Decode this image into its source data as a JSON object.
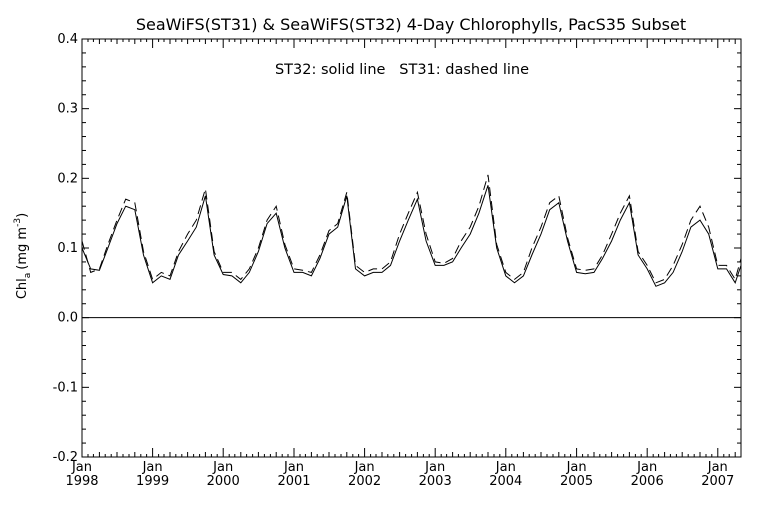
{
  "chart_data": {
    "type": "line",
    "title": "SeaWiFS(ST31) & SeaWiFS(ST32) 4-Day Chlorophylls, PacS35 Subset",
    "annotation": "ST32: solid line   ST31: dashed line",
    "ylabel_main": "Chl",
    "ylabel_sub": "a",
    "ylabel_units": "(mg m",
    "ylabel_sup": "-3",
    "ylabel_close": ")",
    "xlim": [
      "1998-01-01",
      "2007-05-01"
    ],
    "ylim": [
      -0.2,
      0.4
    ],
    "yticks": [
      {
        "value": -0.2,
        "label": "-0.2"
      },
      {
        "value": -0.1,
        "label": "-0.1"
      },
      {
        "value": 0.0,
        "label": "0.0"
      },
      {
        "value": 0.1,
        "label": "0.1"
      },
      {
        "value": 0.2,
        "label": "0.2"
      },
      {
        "value": 0.3,
        "label": "0.3"
      },
      {
        "value": 0.4,
        "label": "0.4"
      }
    ],
    "xticks": [
      {
        "value": "1998-01-01",
        "month": "Jan",
        "year": "1998"
      },
      {
        "value": "1999-01-01",
        "month": "Jan",
        "year": "1999"
      },
      {
        "value": "2000-01-01",
        "month": "Jan",
        "year": "2000"
      },
      {
        "value": "2001-01-01",
        "month": "Jan",
        "year": "2001"
      },
      {
        "value": "2002-01-01",
        "month": "Jan",
        "year": "2002"
      },
      {
        "value": "2003-01-01",
        "month": "Jan",
        "year": "2003"
      },
      {
        "value": "2004-01-01",
        "month": "Jan",
        "year": "2004"
      },
      {
        "value": "2005-01-01",
        "month": "Jan",
        "year": "2005"
      },
      {
        "value": "2006-01-01",
        "month": "Jan",
        "year": "2006"
      },
      {
        "value": "2007-01-01",
        "month": "Jan",
        "year": "2007"
      }
    ],
    "zero_line": 0.0,
    "series": [
      {
        "style": "solid",
        "x": [
          "1998-01-01",
          "1998-02-15",
          "1998-04-01",
          "1998-05-15",
          "1998-07-01",
          "1998-08-15",
          "1998-10-01",
          "1998-11-15",
          "1999-01-01",
          "1999-02-15",
          "1999-04-01",
          "1999-05-15",
          "1999-07-01",
          "1999-08-15",
          "1999-10-01",
          "1999-11-15",
          "2000-01-01",
          "2000-02-15",
          "2000-04-01",
          "2000-05-15",
          "2000-07-01",
          "2000-08-15",
          "2000-10-01",
          "2000-11-15",
          "2001-01-01",
          "2001-02-15",
          "2001-04-01",
          "2001-05-15",
          "2001-07-01",
          "2001-08-15",
          "2001-10-01",
          "2001-11-15",
          "2002-01-01",
          "2002-02-15",
          "2002-04-01",
          "2002-05-15",
          "2002-07-01",
          "2002-08-15",
          "2002-10-01",
          "2002-11-15",
          "2003-01-01",
          "2003-02-15",
          "2003-04-01",
          "2003-05-15",
          "2003-07-01",
          "2003-08-15",
          "2003-10-01",
          "2003-11-15",
          "2004-01-01",
          "2004-02-15",
          "2004-04-01",
          "2004-05-15",
          "2004-07-01",
          "2004-08-15",
          "2004-10-01",
          "2004-11-15",
          "2005-01-01",
          "2005-02-15",
          "2005-04-01",
          "2005-05-15",
          "2005-07-01",
          "2005-08-15",
          "2005-10-01",
          "2005-11-15",
          "2006-01-01",
          "2006-02-15",
          "2006-04-01",
          "2006-05-15",
          "2006-07-01",
          "2006-08-15",
          "2006-10-01",
          "2006-11-15",
          "2007-01-01",
          "2007-02-15",
          "2007-04-01",
          "2007-05-01"
        ],
        "y": [
          0.1,
          0.07,
          0.068,
          0.1,
          0.135,
          0.16,
          0.155,
          0.09,
          0.05,
          0.06,
          0.055,
          0.09,
          0.11,
          0.13,
          0.175,
          0.09,
          0.062,
          0.06,
          0.05,
          0.065,
          0.095,
          0.135,
          0.15,
          0.1,
          0.065,
          0.065,
          0.06,
          0.085,
          0.12,
          0.13,
          0.175,
          0.07,
          0.06,
          0.065,
          0.065,
          0.075,
          0.11,
          0.14,
          0.17,
          0.11,
          0.075,
          0.075,
          0.08,
          0.1,
          0.12,
          0.15,
          0.19,
          0.1,
          0.06,
          0.05,
          0.06,
          0.09,
          0.12,
          0.155,
          0.165,
          0.11,
          0.065,
          0.063,
          0.065,
          0.085,
          0.11,
          0.14,
          0.165,
          0.09,
          0.07,
          0.045,
          0.05,
          0.065,
          0.095,
          0.13,
          0.14,
          0.12,
          0.07,
          0.07,
          0.05,
          0.075
        ]
      },
      {
        "style": "dashed",
        "x": [
          "1998-01-01",
          "1998-02-15",
          "1998-04-01",
          "1998-05-15",
          "1998-07-01",
          "1998-08-15",
          "1998-10-01",
          "1998-11-15",
          "1999-01-01",
          "1999-02-15",
          "1999-04-01",
          "1999-05-15",
          "1999-07-01",
          "1999-08-15",
          "1999-10-01",
          "1999-11-15",
          "2000-01-01",
          "2000-02-15",
          "2000-04-01",
          "2000-05-15",
          "2000-07-01",
          "2000-08-15",
          "2000-10-01",
          "2000-11-15",
          "2001-01-01",
          "2001-02-15",
          "2001-04-01",
          "2001-05-15",
          "2001-07-01",
          "2001-08-15",
          "2001-10-01",
          "2001-11-15",
          "2002-01-01",
          "2002-02-15",
          "2002-04-01",
          "2002-05-15",
          "2002-07-01",
          "2002-08-15",
          "2002-10-01",
          "2002-11-15",
          "2003-01-01",
          "2003-02-15",
          "2003-04-01",
          "2003-05-15",
          "2003-07-01",
          "2003-08-15",
          "2003-10-01",
          "2003-11-15",
          "2004-01-01",
          "2004-02-15",
          "2004-04-01",
          "2004-05-15",
          "2004-07-01",
          "2004-08-15",
          "2004-10-01",
          "2004-11-15",
          "2005-01-01",
          "2005-02-15",
          "2005-04-01",
          "2005-05-15",
          "2005-07-01",
          "2005-08-15",
          "2005-10-01",
          "2005-11-15",
          "2006-01-01",
          "2006-02-15",
          "2006-04-01",
          "2006-05-15",
          "2006-07-01",
          "2006-08-15",
          "2006-10-01",
          "2006-11-15",
          "2007-01-01",
          "2007-02-15",
          "2007-04-01",
          "2007-05-01"
        ],
        "y": [
          0.11,
          0.065,
          0.07,
          0.105,
          0.14,
          0.17,
          0.165,
          0.095,
          0.055,
          0.065,
          0.06,
          0.095,
          0.12,
          0.14,
          0.185,
          0.095,
          0.065,
          0.065,
          0.055,
          0.07,
          0.1,
          0.14,
          0.16,
          0.105,
          0.07,
          0.068,
          0.065,
          0.09,
          0.125,
          0.135,
          0.18,
          0.075,
          0.065,
          0.07,
          0.07,
          0.08,
          0.12,
          0.15,
          0.18,
          0.12,
          0.08,
          0.078,
          0.085,
          0.11,
          0.13,
          0.16,
          0.205,
          0.105,
          0.065,
          0.055,
          0.065,
          0.1,
          0.13,
          0.165,
          0.175,
          0.115,
          0.07,
          0.068,
          0.07,
          0.09,
          0.12,
          0.15,
          0.175,
          0.095,
          0.075,
          0.05,
          0.055,
          0.075,
          0.105,
          0.14,
          0.16,
          0.13,
          0.075,
          0.075,
          0.055,
          0.085
        ]
      }
    ]
  }
}
